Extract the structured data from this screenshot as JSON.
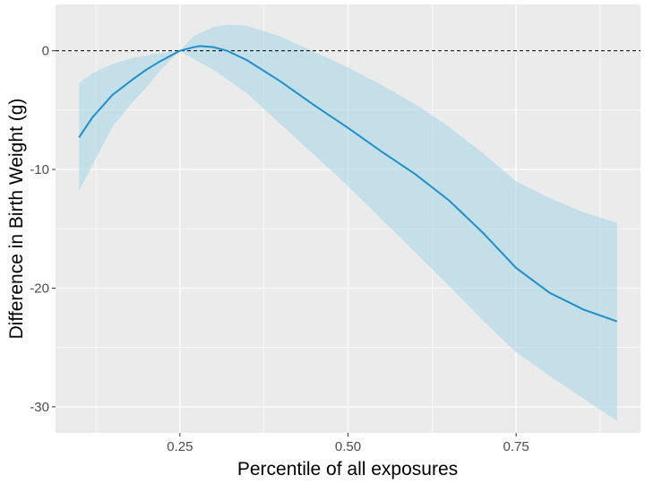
{
  "chart_data": {
    "type": "line",
    "title": "",
    "xlabel": "Percentile of all exposures",
    "ylabel": "Difference in Birth Weight (g)",
    "xlim": [
      0.065,
      0.935
    ],
    "ylim": [
      -32.2,
      3.9
    ],
    "x_ticks": [
      0.25,
      0.5,
      0.75
    ],
    "x_tick_labels": [
      "0.25",
      "0.50",
      "0.75"
    ],
    "y_ticks": [
      -30,
      -20,
      -10,
      0
    ],
    "y_tick_labels": [
      "-30",
      "-20",
      "-10",
      "0"
    ],
    "grid": true,
    "reference_line_y": 0,
    "legend": "none",
    "colors": {
      "panel_background": "#ebebeb",
      "grid": "#ffffff",
      "line": "#1f8fcb",
      "ribbon": "#add8e6",
      "reference_line": "#000000"
    },
    "series": [
      {
        "x": [
          0.1,
          0.12,
          0.15,
          0.18,
          0.2,
          0.22,
          0.25,
          0.27,
          0.28,
          0.3,
          0.32,
          0.35,
          0.4,
          0.45,
          0.5,
          0.55,
          0.6,
          0.65,
          0.7,
          0.75,
          0.8,
          0.85,
          0.9
        ],
        "y": [
          -7.3,
          -5.6,
          -3.7,
          -2.4,
          -1.6,
          -0.9,
          0.0,
          0.3,
          0.4,
          0.3,
          0.0,
          -0.8,
          -2.6,
          -4.6,
          -6.5,
          -8.5,
          -10.4,
          -12.6,
          -15.3,
          -18.3,
          -20.4,
          -21.8,
          -22.8
        ],
        "lower": [
          -11.8,
          -9.6,
          -6.4,
          -4.3,
          -3.1,
          -1.7,
          0.0,
          -0.7,
          -1.0,
          -1.6,
          -2.4,
          -3.6,
          -6.2,
          -8.8,
          -11.4,
          -14.2,
          -17.0,
          -19.8,
          -22.7,
          -25.4,
          -27.4,
          -29.3,
          -31.2
        ],
        "upper": [
          -2.7,
          -1.9,
          -1.1,
          -0.6,
          -0.4,
          -0.2,
          0.0,
          1.2,
          1.5,
          2.0,
          2.2,
          2.1,
          1.2,
          -0.1,
          -1.4,
          -2.9,
          -4.5,
          -6.4,
          -8.6,
          -11.0,
          -12.4,
          -13.6,
          -14.5
        ]
      }
    ]
  }
}
